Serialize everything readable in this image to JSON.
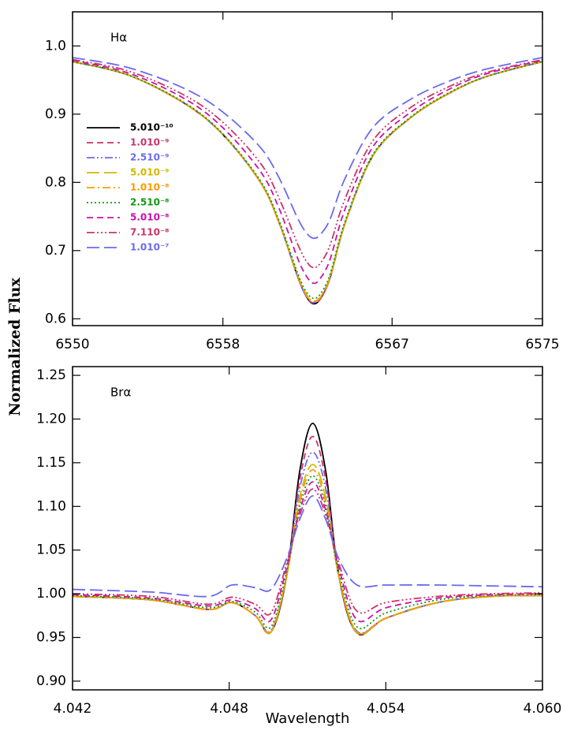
{
  "chart_data": [
    {
      "type": "line",
      "annotation": "Hα",
      "ylabel": "Normalized Flux",
      "legend": true,
      "xlim": [
        6550,
        6575
      ],
      "xticks": [
        6550,
        6558,
        6567,
        6575
      ],
      "ylim": [
        0.59,
        1.05
      ],
      "yticks": [
        0.6,
        0.7,
        0.8,
        0.9,
        {
          "value": 1.0,
          "label": "1.0"
        }
      ],
      "x": [
        6550,
        6553,
        6556,
        6558,
        6560,
        6561,
        6562,
        6562.5,
        6562.85,
        6563.2,
        6563.7,
        6564.5,
        6566,
        6568,
        6570,
        6572,
        6575
      ],
      "series": [
        {
          "name": "5.010⁻¹⁰",
          "color": "#000000",
          "dash": "solid",
          "values": [
            0.977,
            0.957,
            0.915,
            0.87,
            0.8,
            0.74,
            0.66,
            0.63,
            0.622,
            0.63,
            0.66,
            0.74,
            0.84,
            0.895,
            0.93,
            0.955,
            0.977
          ]
        },
        {
          "name": "1.010⁻⁹",
          "color": "#cc3366",
          "dash": "dashed",
          "values": [
            0.977,
            0.957,
            0.915,
            0.87,
            0.8,
            0.74,
            0.66,
            0.63,
            0.623,
            0.63,
            0.66,
            0.74,
            0.84,
            0.895,
            0.93,
            0.955,
            0.977
          ]
        },
        {
          "name": "2.510⁻⁹",
          "color": "#6b6bef",
          "dash": "dashdotdot",
          "values": [
            0.977,
            0.957,
            0.915,
            0.87,
            0.8,
            0.74,
            0.66,
            0.631,
            0.624,
            0.631,
            0.66,
            0.74,
            0.84,
            0.895,
            0.93,
            0.955,
            0.977
          ]
        },
        {
          "name": "5.010⁻⁹",
          "color": "#d4b800",
          "dash": "longdash",
          "values": [
            0.977,
            0.957,
            0.915,
            0.87,
            0.8,
            0.74,
            0.661,
            0.632,
            0.625,
            0.632,
            0.661,
            0.74,
            0.84,
            0.895,
            0.93,
            0.955,
            0.977
          ]
        },
        {
          "name": "1.010⁻⁸",
          "color": "#ff9900",
          "dash": "dashdot",
          "values": [
            0.977,
            0.957,
            0.915,
            0.87,
            0.8,
            0.74,
            0.662,
            0.633,
            0.626,
            0.633,
            0.662,
            0.74,
            0.84,
            0.895,
            0.93,
            0.955,
            0.977
          ]
        },
        {
          "name": "2.510⁻⁸",
          "color": "#119911",
          "dash": "dotted",
          "values": [
            0.977,
            0.957,
            0.916,
            0.871,
            0.802,
            0.743,
            0.665,
            0.637,
            0.63,
            0.637,
            0.665,
            0.743,
            0.842,
            0.896,
            0.931,
            0.955,
            0.977
          ]
        },
        {
          "name": "5.010⁻⁸",
          "color": "#cc11aa",
          "dash": "dashed",
          "values": [
            0.979,
            0.96,
            0.922,
            0.88,
            0.816,
            0.761,
            0.687,
            0.66,
            0.652,
            0.66,
            0.687,
            0.761,
            0.853,
            0.903,
            0.936,
            0.959,
            0.979
          ]
        },
        {
          "name": "7.110⁻⁸",
          "color": "#cc3366",
          "dash": "dashdotdotdot",
          "values": [
            0.98,
            0.963,
            0.927,
            0.888,
            0.828,
            0.776,
            0.708,
            0.682,
            0.675,
            0.682,
            0.708,
            0.776,
            0.862,
            0.91,
            0.94,
            0.961,
            0.98
          ]
        },
        {
          "name": "1.010⁻⁷",
          "color": "#6a6aef",
          "dash": "longdash",
          "values": [
            0.983,
            0.968,
            0.937,
            0.903,
            0.851,
            0.806,
            0.746,
            0.724,
            0.718,
            0.724,
            0.746,
            0.806,
            0.881,
            0.922,
            0.948,
            0.966,
            0.983
          ]
        }
      ]
    },
    {
      "type": "line",
      "annotation": "Brα",
      "xlabel": "Wavelength",
      "legend": false,
      "xlim": [
        4.042,
        4.06
      ],
      "xticks": [
        4.042,
        4.048,
        4.054,
        {
          "value": 4.06,
          "label": "4.060"
        }
      ],
      "ylim": [
        0.89,
        1.26
      ],
      "yticks": [
        {
          "value": 0.9,
          "label": "0.90"
        },
        0.95,
        {
          "value": 1.0,
          "label": "1.00"
        },
        1.05,
        {
          "value": 1.1,
          "label": "1.10"
        },
        1.15,
        {
          "value": 1.2,
          "label": "1.20"
        },
        1.25
      ],
      "x": [
        4.042,
        4.045,
        4.0472,
        4.0481,
        4.049,
        4.0496,
        4.0502,
        4.0507,
        4.0512,
        4.0517,
        4.0522,
        4.0529,
        4.054,
        4.056,
        4.058,
        4.06
      ],
      "series": [
        {
          "color": "#000000",
          "dash": "solid",
          "values": [
            0.997,
            0.993,
            0.982,
            0.99,
            0.975,
            0.956,
            1.02,
            1.14,
            1.195,
            1.14,
            1.02,
            0.955,
            0.972,
            0.99,
            0.997,
            0.998
          ]
        },
        {
          "color": "#cc3366",
          "dash": "dashed",
          "values": [
            0.997,
            0.993,
            0.982,
            0.99,
            0.975,
            0.957,
            1.02,
            1.13,
            1.18,
            1.13,
            1.02,
            0.956,
            0.972,
            0.99,
            0.997,
            0.998
          ]
        },
        {
          "color": "#6b6bef",
          "dash": "dashdotdot",
          "values": [
            0.997,
            0.993,
            0.982,
            0.99,
            0.975,
            0.958,
            1.02,
            1.12,
            1.162,
            1.12,
            1.02,
            0.957,
            0.972,
            0.99,
            0.997,
            0.998
          ]
        },
        {
          "color": "#d4b800",
          "dash": "longdash",
          "values": [
            0.997,
            0.993,
            0.982,
            0.99,
            0.975,
            0.956,
            1.02,
            1.11,
            1.148,
            1.11,
            1.02,
            0.955,
            0.972,
            0.99,
            0.997,
            0.998
          ]
        },
        {
          "color": "#ff9900",
          "dash": "dashdot",
          "values": [
            0.997,
            0.993,
            0.982,
            0.99,
            0.975,
            0.957,
            1.02,
            1.105,
            1.142,
            1.105,
            1.02,
            0.956,
            0.972,
            0.99,
            0.997,
            0.998
          ]
        },
        {
          "color": "#119911",
          "dash": "dotted",
          "values": [
            0.998,
            0.994,
            0.984,
            0.991,
            0.979,
            0.962,
            1.025,
            1.1,
            1.135,
            1.1,
            1.025,
            0.962,
            0.978,
            0.993,
            0.998,
            0.999
          ]
        },
        {
          "color": "#cc11aa",
          "dash": "dashed",
          "values": [
            0.999,
            0.995,
            0.986,
            0.993,
            0.983,
            0.97,
            1.03,
            1.095,
            1.128,
            1.095,
            1.03,
            0.97,
            0.984,
            0.995,
            0.999,
            1.0
          ]
        },
        {
          "color": "#cc3366",
          "dash": "dashdotdotdot",
          "values": [
            1.0,
            0.997,
            0.988,
            0.996,
            0.988,
            0.978,
            1.035,
            1.09,
            1.12,
            1.09,
            1.035,
            0.98,
            0.99,
            0.997,
            1.0,
            1.001
          ]
        },
        {
          "color": "#6a6aef",
          "dash": "longdash",
          "values": [
            1.005,
            1.002,
            0.997,
            1.01,
            1.007,
            1.005,
            1.04,
            1.085,
            1.112,
            1.085,
            1.04,
            1.01,
            1.01,
            1.01,
            1.009,
            1.008
          ]
        }
      ]
    }
  ]
}
